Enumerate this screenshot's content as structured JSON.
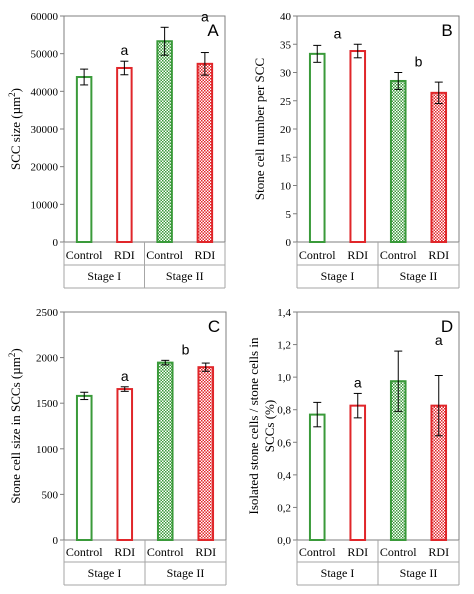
{
  "colors": {
    "green": "#3a9a3a",
    "red": "#e0262a",
    "axis": "#7f7f7f",
    "stageline": "#a6a6a6"
  },
  "chart_data": [
    {
      "panel": "A",
      "type": "bar",
      "ylabel_parts": [
        "SCC  size  (µm",
        "2",
        ")"
      ],
      "ylim": [
        0,
        60000
      ],
      "yticks": [
        0,
        10000,
        20000,
        30000,
        40000,
        50000,
        60000
      ],
      "ytick_labels": [
        "0",
        "10000",
        "20000",
        "30000",
        "40000",
        "50000",
        "60000"
      ],
      "categories": [
        "Control",
        "RDI",
        "Control",
        "RDI"
      ],
      "stages": [
        "Stage I",
        "Stage II"
      ],
      "values": [
        43800,
        46200,
        53300,
        47300
      ],
      "errors": [
        2100,
        1800,
        3700,
        3000
      ],
      "significance": [
        {
          "label": "a",
          "over": 1
        },
        {
          "label": "a",
          "over": 3
        }
      ]
    },
    {
      "panel": "B",
      "type": "bar",
      "ylabel_parts": [
        "Stone cell number per SCC"
      ],
      "ylim": [
        0,
        40
      ],
      "yticks": [
        0,
        5,
        10,
        15,
        20,
        25,
        30,
        35,
        40
      ],
      "ytick_labels": [
        "0",
        "5",
        "10",
        "15",
        "20",
        "25",
        "30",
        "35",
        "40"
      ],
      "categories": [
        "Control",
        "RDI",
        "Control",
        "RDI"
      ],
      "stages": [
        "Stage I",
        "Stage II"
      ],
      "values": [
        33.3,
        33.8,
        28.5,
        26.4
      ],
      "errors": [
        1.5,
        1.2,
        1.5,
        1.9
      ],
      "significance": [
        {
          "label": "a",
          "over": 0.5
        },
        {
          "label": "b",
          "over": 2.5
        }
      ]
    },
    {
      "panel": "C",
      "type": "bar",
      "ylabel_parts": [
        "Stone cell size in SCCs (µm",
        "2",
        ")"
      ],
      "ylim": [
        0,
        2500
      ],
      "yticks": [
        0,
        500,
        1000,
        1500,
        2000,
        2500
      ],
      "ytick_labels": [
        "0",
        "500",
        "1000",
        "1500",
        "2000",
        "2500"
      ],
      "categories": [
        "Control",
        "RDI",
        "Control",
        "RDI"
      ],
      "stages": [
        "Stage I",
        "Stage II"
      ],
      "values": [
        1580,
        1655,
        1945,
        1895
      ],
      "errors": [
        40,
        25,
        25,
        45
      ],
      "significance": [
        {
          "label": "a",
          "over": 1
        },
        {
          "label": "b",
          "over": 2.5
        }
      ]
    },
    {
      "panel": "D",
      "type": "bar",
      "ylabel_parts": [
        "Isolated stone cells / stone cells in",
        "SCCs (%)"
      ],
      "ylim": [
        0,
        1.4
      ],
      "yticks": [
        0,
        0.2,
        0.4,
        0.6,
        0.8,
        1.0,
        1.2,
        1.4
      ],
      "ytick_labels": [
        "0,0",
        "0,2",
        "0,4",
        "0,6",
        "0,8",
        "1,0",
        "1,2",
        "1,4"
      ],
      "categories": [
        "Control",
        "RDI",
        "Control",
        "RDI"
      ],
      "stages": [
        "Stage I",
        "Stage II"
      ],
      "values": [
        0.77,
        0.825,
        0.975,
        0.825
      ],
      "errors": [
        0.075,
        0.075,
        0.185,
        0.185
      ],
      "significance": [
        {
          "label": "a",
          "over": 1
        },
        {
          "label": "a",
          "over": 3
        }
      ]
    }
  ]
}
